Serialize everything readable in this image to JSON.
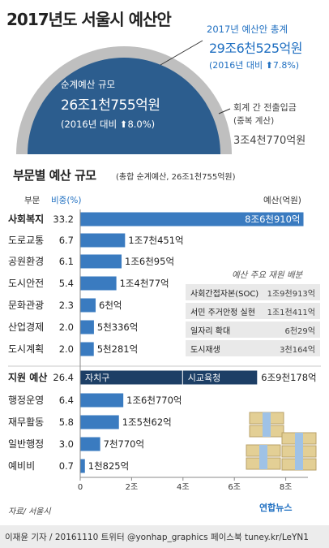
{
  "title": "2017년도 서울시 예산안",
  "overview": {
    "net_budget_label": "순계예산 규모",
    "net_budget_value": "26조1천755억원",
    "net_budget_change": "(2016년 대비 ⬆8.0%)",
    "total_label": "2017년 예산안 총계",
    "total_value": "29조6천525억원",
    "total_change": "(2016년 대비 ⬆7.8%)",
    "transfer_label": "회계 간 전출입금",
    "transfer_sub": "(중복 계산)",
    "transfer_value": "3조4천770억원"
  },
  "section": {
    "title": "부문별 예산 규모",
    "subtitle": "(총합 순계예산, 26조1천755억원)",
    "col_dept": "부문",
    "col_share": "비중(%)",
    "col_budget": "예산(억원)"
  },
  "colors": {
    "bar": "#3a7bc0",
    "dark": "#1d3f66",
    "circle": "#2c5d8e",
    "ring": "#bfbfbf",
    "accent": "#1f6fc1"
  },
  "chart_data": {
    "type": "bar",
    "orientation": "horizontal",
    "x_unit": "조원",
    "xlim": [
      0,
      9
    ],
    "x_ticks": [
      {
        "value": 0,
        "label": "0"
      },
      {
        "value": 2,
        "label": "2조"
      },
      {
        "value": 4,
        "label": "4조"
      },
      {
        "value": 6,
        "label": "6조"
      },
      {
        "value": 8,
        "label": "8조"
      }
    ],
    "series": [
      {
        "category": "사회복지",
        "share": "33.2",
        "value": 8.691,
        "label": "8조6천910억"
      },
      {
        "category": "도로교통",
        "share": "6.7",
        "value": 1.7451,
        "label": "1조7천451억"
      },
      {
        "category": "공원환경",
        "share": "6.1",
        "value": 1.6095,
        "label": "1조6천95억"
      },
      {
        "category": "도시안전",
        "share": "5.4",
        "value": 1.4077,
        "label": "1조4천77억"
      },
      {
        "category": "문화관광",
        "share": "2.3",
        "value": 0.6,
        "label": "6천억"
      },
      {
        "category": "산업경제",
        "share": "2.0",
        "value": 0.5336,
        "label": "5천336억"
      },
      {
        "category": "도시계획",
        "share": "2.0",
        "value": 0.5281,
        "label": "5천281억"
      },
      {
        "category": "지원 예산",
        "share": "26.4",
        "value": 6.9178,
        "label": "6조9천178억",
        "segments": [
          {
            "name": "자치구",
            "value": 4.0
          },
          {
            "name": "시교육청",
            "value": 2.9178
          }
        ]
      },
      {
        "category": "행정운영",
        "share": "6.4",
        "value": 1.677,
        "label": "1조6천770억"
      },
      {
        "category": "재무활동",
        "share": "5.8",
        "value": 1.5062,
        "label": "1조5천62억"
      },
      {
        "category": "일반행정",
        "share": "3.0",
        "value": 0.777,
        "label": "7천770억"
      },
      {
        "category": "예비비",
        "share": "0.7",
        "value": 0.1825,
        "label": "1천825억"
      }
    ]
  },
  "supplementary": {
    "title": "예산 주요 재원 배분",
    "items": [
      {
        "label": "사회간접자본(SOC)",
        "value": "1조9천913억"
      },
      {
        "label": "서민 주거안정 실현",
        "value": "1조1천411억"
      },
      {
        "label": "일자리 확대",
        "value": "6천29억"
      },
      {
        "label": "도시재생",
        "value": "3천164억"
      }
    ]
  },
  "source": "자료/ 서울시",
  "logo_text": "연합뉴스",
  "footer": "이재윤 기자 / 20161110  트위터 @yonhap_graphics  페이스북 tuney.kr/LeYN1"
}
